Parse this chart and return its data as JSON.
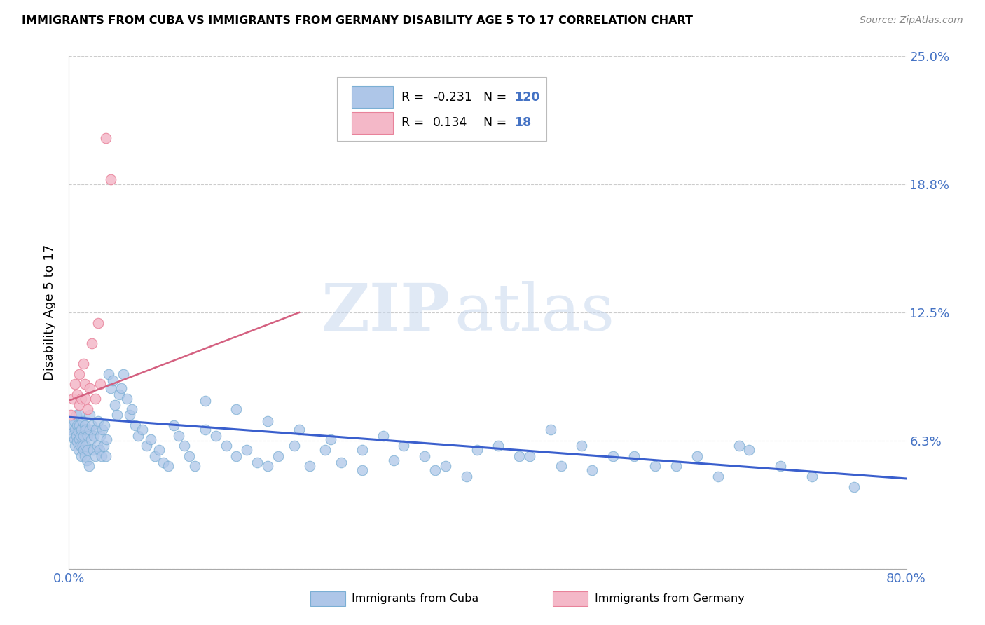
{
  "title": "IMMIGRANTS FROM CUBA VS IMMIGRANTS FROM GERMANY DISABILITY AGE 5 TO 17 CORRELATION CHART",
  "source": "Source: ZipAtlas.com",
  "ylabel": "Disability Age 5 to 17",
  "xlim": [
    0.0,
    0.8
  ],
  "ylim": [
    0.0,
    0.25
  ],
  "ytick_vals": [
    0.0,
    0.0625,
    0.125,
    0.1875,
    0.25
  ],
  "ytick_labels_right": [
    "",
    "6.3%",
    "12.5%",
    "18.8%",
    "25.0%"
  ],
  "xtick_vals": [
    0.0,
    0.2,
    0.4,
    0.6,
    0.8
  ],
  "xtick_labels": [
    "0.0%",
    "",
    "",
    "",
    "80.0%"
  ],
  "cuba_color": "#aec6e8",
  "cuba_edge_color": "#7bafd4",
  "germany_color": "#f4b8c8",
  "germany_edge_color": "#e8829a",
  "cuba_R": "-0.231",
  "cuba_N": "120",
  "germany_R": "0.134",
  "germany_N": "18",
  "trendline_cuba_color": "#3a5fcd",
  "trendline_germany_color": "#d46080",
  "watermark_zip": "ZIP",
  "watermark_atlas": "atlas",
  "cuba_trend_x0": 0.0,
  "cuba_trend_y0": 0.074,
  "cuba_trend_x1": 0.8,
  "cuba_trend_y1": 0.044,
  "germany_trend_x0": 0.0,
  "germany_trend_y0": 0.082,
  "germany_trend_x1": 0.22,
  "germany_trend_y1": 0.125,
  "cuba_scatter_x": [
    0.002,
    0.003,
    0.004,
    0.005,
    0.005,
    0.006,
    0.006,
    0.007,
    0.007,
    0.008,
    0.008,
    0.009,
    0.009,
    0.01,
    0.01,
    0.01,
    0.011,
    0.011,
    0.012,
    0.012,
    0.013,
    0.013,
    0.014,
    0.014,
    0.015,
    0.015,
    0.016,
    0.016,
    0.017,
    0.018,
    0.018,
    0.019,
    0.02,
    0.02,
    0.021,
    0.022,
    0.023,
    0.024,
    0.025,
    0.026,
    0.027,
    0.028,
    0.029,
    0.03,
    0.031,
    0.032,
    0.033,
    0.034,
    0.035,
    0.036,
    0.038,
    0.04,
    0.042,
    0.044,
    0.046,
    0.048,
    0.05,
    0.052,
    0.055,
    0.058,
    0.06,
    0.063,
    0.066,
    0.07,
    0.074,
    0.078,
    0.082,
    0.086,
    0.09,
    0.095,
    0.1,
    0.105,
    0.11,
    0.115,
    0.12,
    0.13,
    0.14,
    0.15,
    0.16,
    0.17,
    0.18,
    0.19,
    0.2,
    0.215,
    0.23,
    0.245,
    0.26,
    0.28,
    0.3,
    0.32,
    0.34,
    0.36,
    0.38,
    0.41,
    0.44,
    0.47,
    0.5,
    0.54,
    0.58,
    0.62,
    0.65,
    0.68,
    0.71,
    0.75,
    0.13,
    0.16,
    0.19,
    0.22,
    0.25,
    0.28,
    0.31,
    0.35,
    0.39,
    0.43,
    0.46,
    0.49,
    0.52,
    0.56,
    0.6,
    0.64
  ],
  "cuba_scatter_y": [
    0.068,
    0.065,
    0.07,
    0.063,
    0.072,
    0.068,
    0.06,
    0.065,
    0.075,
    0.062,
    0.07,
    0.058,
    0.067,
    0.063,
    0.07,
    0.075,
    0.06,
    0.065,
    0.055,
    0.068,
    0.06,
    0.072,
    0.058,
    0.065,
    0.055,
    0.07,
    0.06,
    0.068,
    0.053,
    0.058,
    0.065,
    0.05,
    0.075,
    0.068,
    0.063,
    0.07,
    0.058,
    0.065,
    0.055,
    0.068,
    0.06,
    0.072,
    0.058,
    0.065,
    0.055,
    0.068,
    0.06,
    0.07,
    0.055,
    0.063,
    0.095,
    0.088,
    0.092,
    0.08,
    0.075,
    0.085,
    0.088,
    0.095,
    0.083,
    0.075,
    0.078,
    0.07,
    0.065,
    0.068,
    0.06,
    0.063,
    0.055,
    0.058,
    0.052,
    0.05,
    0.07,
    0.065,
    0.06,
    0.055,
    0.05,
    0.068,
    0.065,
    0.06,
    0.055,
    0.058,
    0.052,
    0.05,
    0.055,
    0.06,
    0.05,
    0.058,
    0.052,
    0.048,
    0.065,
    0.06,
    0.055,
    0.05,
    0.045,
    0.06,
    0.055,
    0.05,
    0.048,
    0.055,
    0.05,
    0.045,
    0.058,
    0.05,
    0.045,
    0.04,
    0.082,
    0.078,
    0.072,
    0.068,
    0.063,
    0.058,
    0.053,
    0.048,
    0.058,
    0.055,
    0.068,
    0.06,
    0.055,
    0.05,
    0.055,
    0.06
  ],
  "germany_scatter_x": [
    0.002,
    0.004,
    0.006,
    0.008,
    0.01,
    0.01,
    0.012,
    0.014,
    0.015,
    0.016,
    0.018,
    0.02,
    0.022,
    0.025,
    0.028,
    0.03,
    0.035,
    0.04
  ],
  "germany_scatter_y": [
    0.075,
    0.083,
    0.09,
    0.085,
    0.08,
    0.095,
    0.083,
    0.1,
    0.09,
    0.083,
    0.078,
    0.088,
    0.11,
    0.083,
    0.12,
    0.09,
    0.21,
    0.19
  ]
}
